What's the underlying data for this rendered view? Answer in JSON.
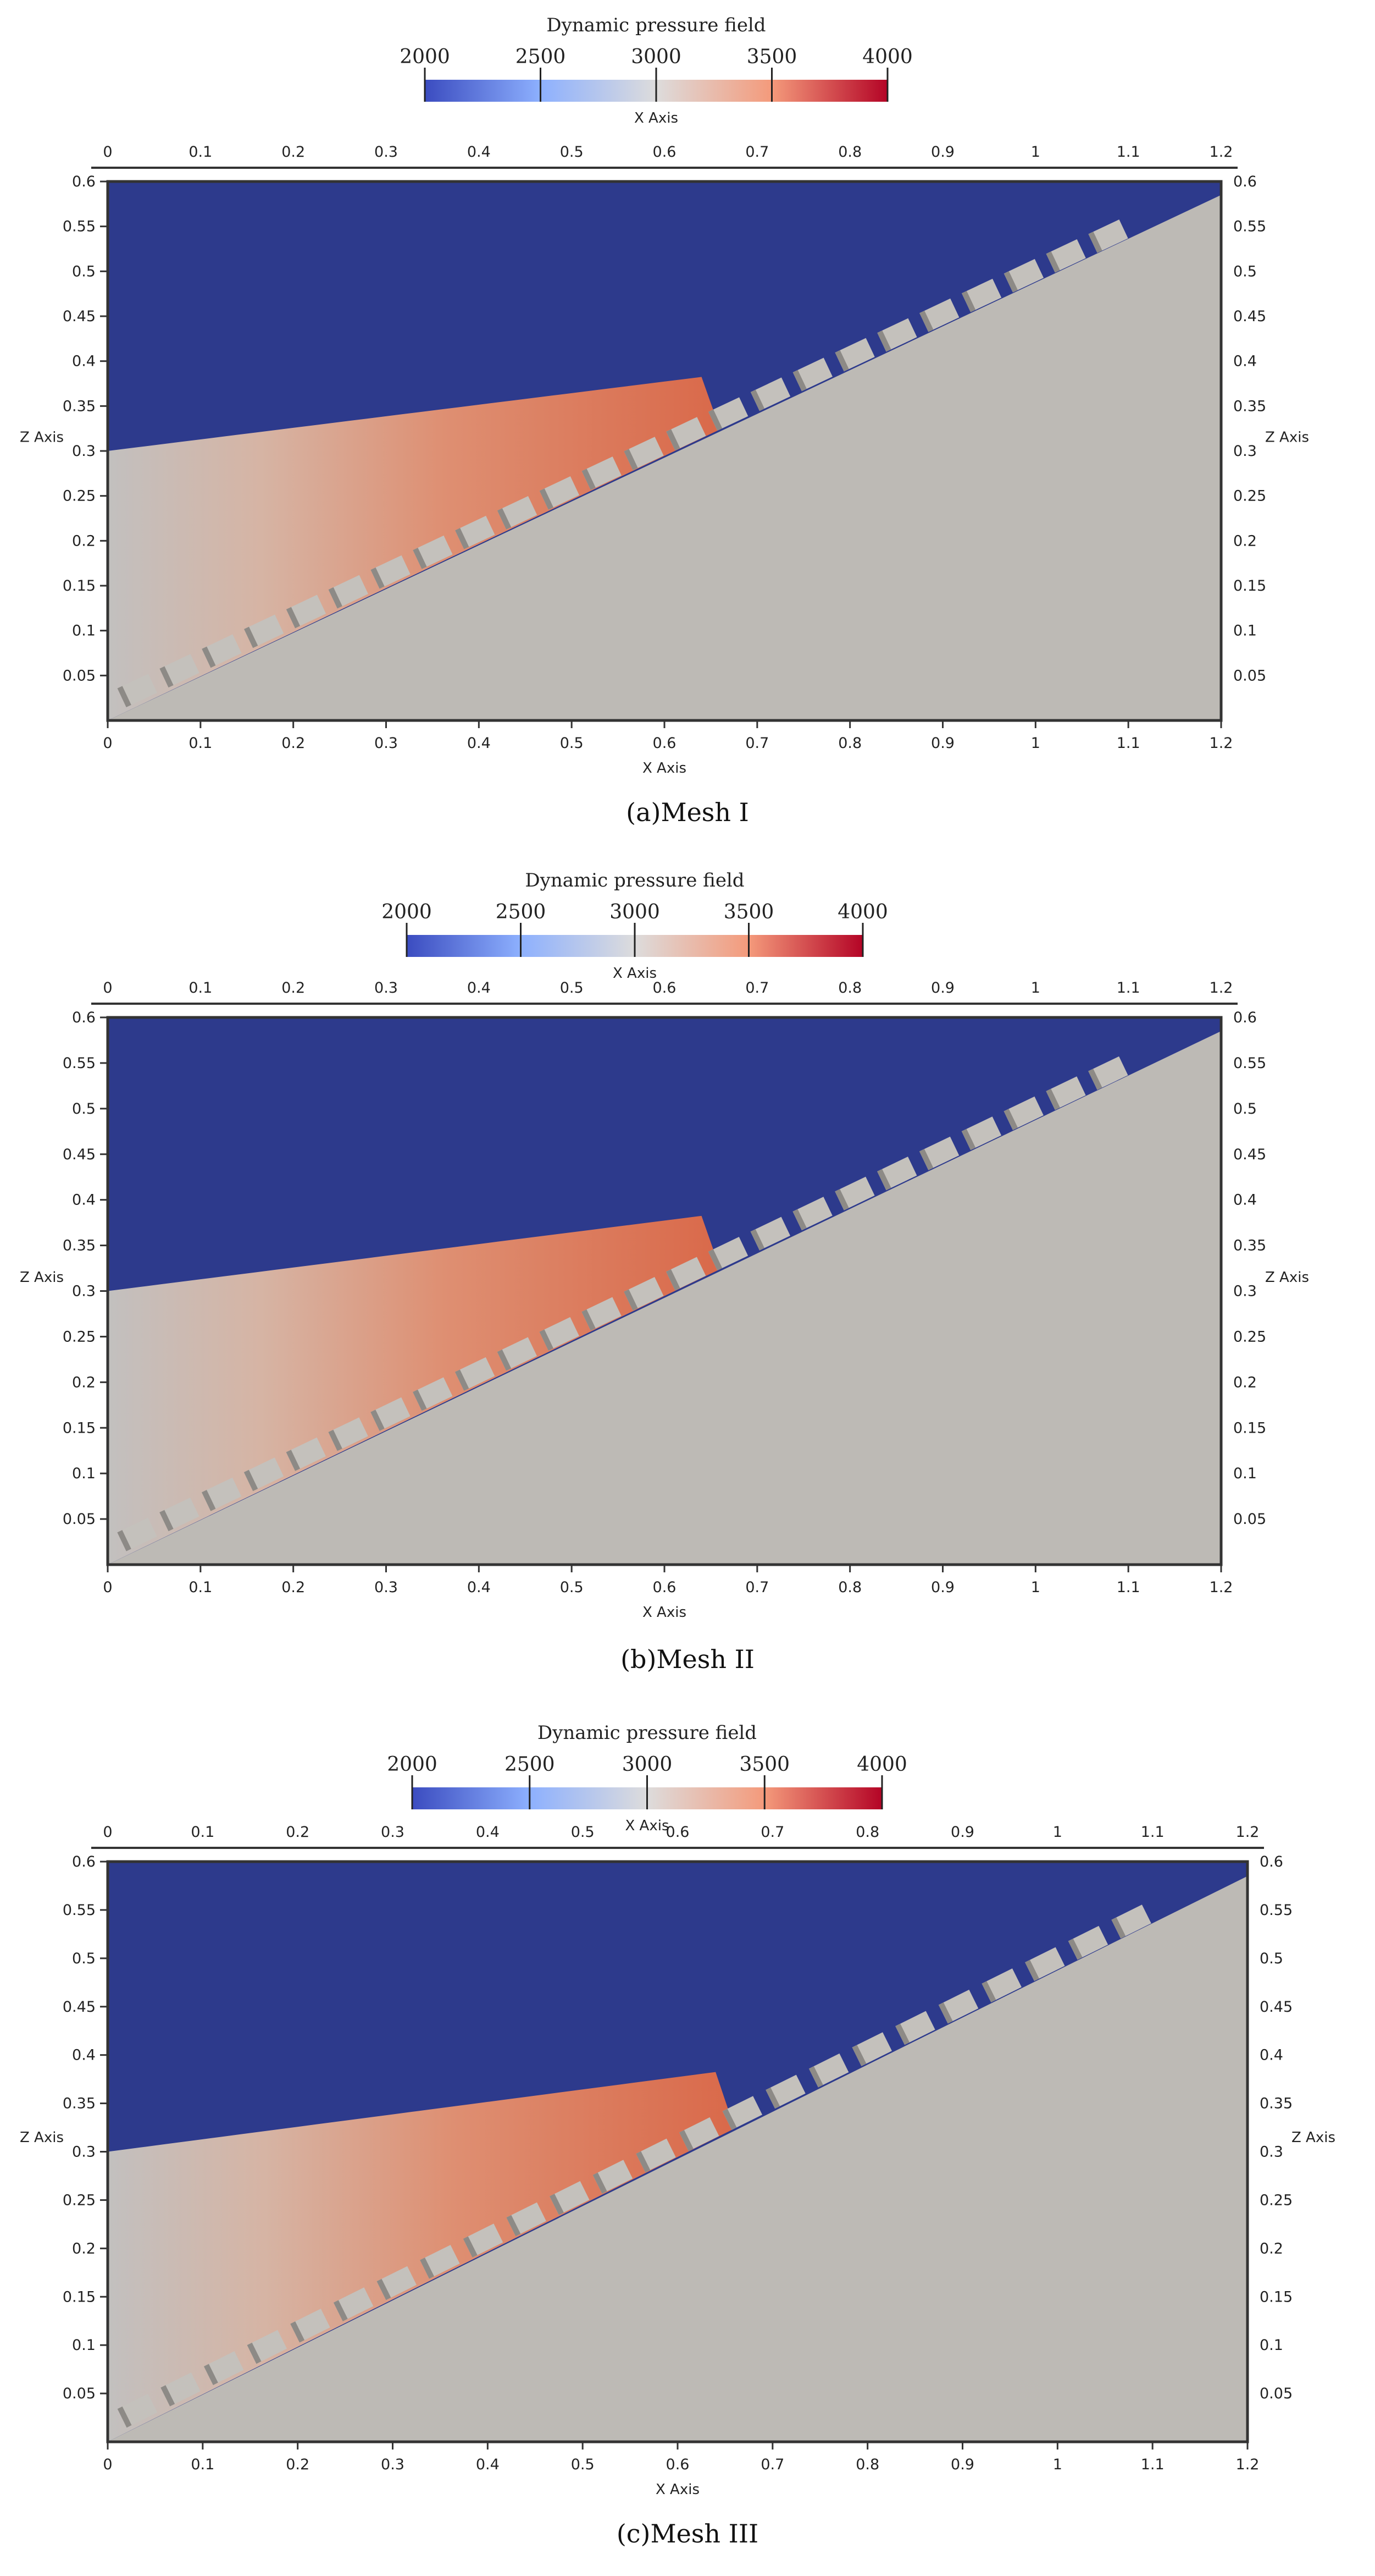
{
  "colorbar": {
    "title": "Dynamic pressure field",
    "ticks": [
      "2000",
      "2500",
      "3000",
      "3500",
      "4000"
    ],
    "colors": [
      "#3b4cc0",
      "#8db0fe",
      "#dddcdc",
      "#f49a7b",
      "#b40426"
    ]
  },
  "axes": {
    "x_label": "X Axis",
    "z_label": "Z Axis",
    "x_ticks": [
      "0",
      "0.1",
      "0.2",
      "0.3",
      "0.4",
      "0.5",
      "0.6",
      "0.7",
      "0.8",
      "0.9",
      "1",
      "1.1",
      "1.2"
    ],
    "z_ticks": [
      "0.05",
      "0.1",
      "0.15",
      "0.2",
      "0.25",
      "0.3",
      "0.35",
      "0.4",
      "0.45",
      "0.5",
      "0.55",
      "0.6"
    ]
  },
  "field_colors": {
    "air": "#2d3a8c",
    "solid": "#bdbab5",
    "water_low": "#c7c3bf",
    "water_high": "#e0795a",
    "baffle": "#c4c1bc",
    "baffle_shadow": "#8d8a86"
  },
  "panels": [
    {
      "caption": "(a)Mesh I"
    },
    {
      "caption": "(b)Mesh II"
    },
    {
      "caption": "(c)Mesh III"
    }
  ]
}
